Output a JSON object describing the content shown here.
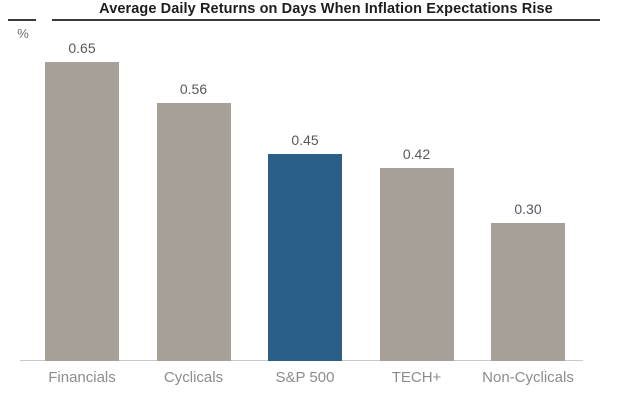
{
  "header": {
    "title": "Average Daily Returns on Days When Inflation Expectations Rise",
    "y_axis_unit": "%"
  },
  "colors": {
    "bar_default": "#a7a099",
    "bar_highlight": "#2a5f8a",
    "title_text": "#1d1d1d",
    "value_label": "#58595b",
    "category_label": "#8a8c8e",
    "baseline": "#c9c9c9",
    "background": "#ffffff"
  },
  "chart_data": {
    "type": "bar",
    "title": "Average Daily Returns on Days When Inflation Expectations Rise",
    "categories": [
      "Financials",
      "Cyclicals",
      "S&P 500",
      "TECH+",
      "Non-Cyclicals"
    ],
    "values": [
      0.65,
      0.56,
      0.45,
      0.42,
      0.3
    ],
    "value_labels": [
      "0.65",
      "0.56",
      "0.45",
      "0.42",
      "0.30"
    ],
    "xlabel": "",
    "ylabel": "%",
    "ylim": [
      0,
      0.7
    ],
    "grid": false,
    "legend": false,
    "highlight_category": "S&P 500",
    "bar_color_default": "#a7a099",
    "bar_color_highlight": "#2a5f8a"
  }
}
